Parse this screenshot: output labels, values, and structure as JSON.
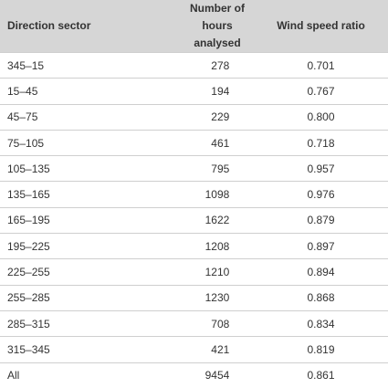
{
  "table": {
    "header": [
      "Direction sector",
      "Number of hours\nanalysed",
      "Wind speed ratio"
    ],
    "rows": [
      [
        "345–15",
        "278",
        "0.701"
      ],
      [
        "15–45",
        "194",
        "0.767"
      ],
      [
        "45–75",
        "229",
        "0.800"
      ],
      [
        "75–105",
        "461",
        "0.718"
      ],
      [
        "105–135",
        "795",
        "0.957"
      ],
      [
        "135–165",
        "1098",
        "0.976"
      ],
      [
        "165–195",
        "1622",
        "0.879"
      ],
      [
        "195–225",
        "1208",
        "0.897"
      ],
      [
        "225–255",
        "1210",
        "0.894"
      ],
      [
        "255–285",
        "1230",
        "0.868"
      ],
      [
        "285–315",
        "708",
        "0.834"
      ],
      [
        "315–345",
        "421",
        "0.819"
      ],
      [
        "All",
        "9454",
        "0.861"
      ]
    ]
  }
}
